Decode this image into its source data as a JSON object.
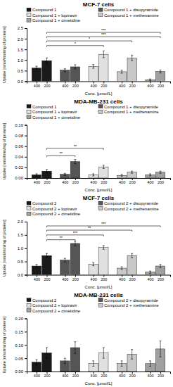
{
  "chart_data": [
    {
      "type": "bar",
      "title": "MCF-7 cells",
      "xlabel": "Conc. [μmol/L]",
      "ylabel": "Uptake [nmol/min/mg of proteins]",
      "categories": [
        "400",
        "200"
      ],
      "series": [
        {
          "name": "Compound 1",
          "color": "#1a1a1a",
          "values": [
            0.62,
            0.97
          ],
          "errors": [
            0.09,
            0.13
          ]
        },
        {
          "name": "Compound 1 + disopyramide",
          "color": "#555555",
          "values": [
            0.52,
            0.68
          ],
          "errors": [
            0.07,
            0.1
          ]
        },
        {
          "name": "Compound 1 + lopinavir",
          "color": "#e0e0e0",
          "values": [
            0.7,
            1.27
          ],
          "errors": [
            0.09,
            0.16
          ]
        },
        {
          "name": "Compound 1 + methenamine",
          "color": "#c8c8c8",
          "values": [
            0.45,
            1.1
          ],
          "errors": [
            0.07,
            0.13
          ]
        },
        {
          "name": "Compound 1 + cimetidine",
          "color": "#a0a0a0",
          "values": [
            0.07,
            0.46
          ],
          "errors": [
            0.04,
            0.07
          ]
        }
      ],
      "ylim": [
        0,
        2.5
      ],
      "yticks": [
        {
          "value": 0,
          "label": "0.0"
        },
        0.5,
        {
          "value": 1,
          "label": "1.0"
        },
        1.5,
        {
          "value": 2,
          "label": "2.0"
        },
        2.5
      ],
      "significance": [
        {
          "from": 0,
          "to": 2,
          "category": "200",
          "y": 1.68,
          "label": "*"
        },
        {
          "from": 0,
          "to": 3,
          "category": "200",
          "y": 1.9,
          "label": "*"
        },
        {
          "from": 0,
          "to": 4,
          "category": "200",
          "y": 2.1,
          "label": "***"
        },
        {
          "from": 0,
          "to": 4,
          "category": "200",
          "y": 2.3,
          "label": "***"
        }
      ],
      "legend": "top",
      "grid": false
    },
    {
      "type": "bar",
      "title": "MDA-MB-231 cells",
      "xlabel": "Conc. [μmol/L]",
      "ylabel": "Uptake [nmol/min/mg of proteins]",
      "categories": [
        "400",
        "200"
      ],
      "series": [
        {
          "name": "Compound 1",
          "color": "#1a1a1a",
          "values": [
            0.006,
            0.013
          ],
          "errors": [
            0.002,
            0.003
          ]
        },
        {
          "name": "Compound 1 + disopyramide",
          "color": "#555555",
          "values": [
            0.007,
            0.031
          ],
          "errors": [
            0.002,
            0.004
          ]
        },
        {
          "name": "Compound 1 + lopinavir",
          "color": "#e0e0e0",
          "values": [
            0.006,
            0.021
          ],
          "errors": [
            0.002,
            0.003
          ]
        },
        {
          "name": "Compound 1 + methenamine",
          "color": "#c8c8c8",
          "values": [
            0.005,
            0.011
          ],
          "errors": [
            0.002,
            0.002
          ]
        },
        {
          "name": "Compound 1 + cimetidine",
          "color": "#a0a0a0",
          "values": [
            0.006,
            0.011
          ],
          "errors": [
            0.002,
            0.002
          ]
        }
      ],
      "ylim": [
        0,
        0.1
      ],
      "yticks": [
        {
          "value": 0,
          "label": "0.00"
        },
        0.02,
        0.04,
        0.06,
        0.08,
        {
          "value": 0.1,
          "label": "0.10"
        }
      ],
      "significance": [
        {
          "from": 0,
          "to": 1,
          "category": "200",
          "y": 0.042,
          "label": "**"
        },
        {
          "from": 0,
          "to": 2,
          "category": "200",
          "y": 0.056,
          "label": "**"
        }
      ],
      "legend": "top",
      "grid": false
    },
    {
      "type": "bar",
      "title": "MCF-7 cells",
      "xlabel": "Conc. [μmol/L]",
      "ylabel": "Uptake [nmol/min/mg of proteins]",
      "categories": [
        "400",
        "200"
      ],
      "series": [
        {
          "name": "Compound 2",
          "color": "#1a1a1a",
          "values": [
            0.33,
            0.72
          ],
          "errors": [
            0.06,
            0.08
          ]
        },
        {
          "name": "Compound 2 + disopyramide",
          "color": "#555555",
          "values": [
            0.55,
            1.18
          ],
          "errors": [
            0.07,
            0.08
          ]
        },
        {
          "name": "Compound 2 + lopinavir",
          "color": "#e0e0e0",
          "values": [
            0.4,
            1.03
          ],
          "errors": [
            0.06,
            0.07
          ]
        },
        {
          "name": "Compound 2 + methenamine",
          "color": "#c8c8c8",
          "values": [
            0.25,
            0.72
          ],
          "errors": [
            0.05,
            0.08
          ]
        },
        {
          "name": "Compound 2 + cimetidine",
          "color": "#a0a0a0",
          "values": [
            0.1,
            0.33
          ],
          "errors": [
            0.04,
            0.06
          ]
        }
      ],
      "ylim": [
        0,
        2.0
      ],
      "yticks": [
        {
          "value": 0,
          "label": "0.0"
        },
        0.5,
        {
          "value": 1,
          "label": "1.0"
        },
        1.5,
        {
          "value": 2,
          "label": "2.0"
        }
      ],
      "significance": [
        {
          "from": 0,
          "to": 1,
          "category": "200",
          "y": 1.32,
          "label": "**"
        },
        {
          "from": 0,
          "to": 2,
          "category": "200",
          "y": 1.5,
          "label": "***"
        },
        {
          "from": 0,
          "to": 3,
          "category": "200",
          "y": 1.68,
          "label": "**"
        },
        {
          "from": 0,
          "to": 4,
          "category": "200",
          "y": 1.84,
          "label": "***"
        }
      ],
      "legend": "top",
      "grid": false
    },
    {
      "type": "bar",
      "title": "MDA-MB-231 cells",
      "xlabel": "Conc. [μmol/L]",
      "ylabel": "Uptake [nmol/min/mg of proteins]",
      "categories": [
        "400",
        "200"
      ],
      "series": [
        {
          "name": "Compound 2",
          "color": "#1a1a1a",
          "values": [
            0.035,
            0.07
          ],
          "errors": [
            0.01,
            0.02
          ]
        },
        {
          "name": "Compound 2 + disopyramide",
          "color": "#555555",
          "values": [
            0.04,
            0.09
          ],
          "errors": [
            0.01,
            0.022
          ]
        },
        {
          "name": "Compound 2 + lopinavir",
          "color": "#e0e0e0",
          "values": [
            0.03,
            0.07
          ],
          "errors": [
            0.01,
            0.02
          ]
        },
        {
          "name": "Compound 2 + methenamine",
          "color": "#c8c8c8",
          "values": [
            0.03,
            0.065
          ],
          "errors": [
            0.01,
            0.018
          ]
        },
        {
          "name": "Compound 2 + cimetidine",
          "color": "#a0a0a0",
          "values": [
            0.03,
            0.085
          ],
          "errors": [
            0.01,
            0.03
          ]
        }
      ],
      "ylim": [
        0,
        0.2
      ],
      "yticks": [
        {
          "value": 0,
          "label": "0.00"
        },
        0.05,
        {
          "value": 0.1,
          "label": "0.10"
        },
        0.15,
        {
          "value": 0.2,
          "label": "0.20"
        }
      ],
      "significance": [],
      "legend": "top",
      "grid": false
    }
  ]
}
